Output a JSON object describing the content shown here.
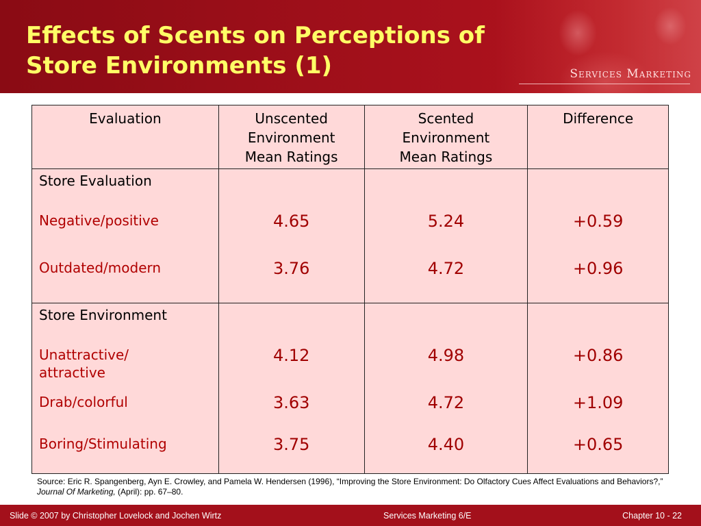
{
  "slide": {
    "title_line1": "Effects of Scents on Perceptions of",
    "title_line2": "Store Environments (1)",
    "brand": "Services Marketing"
  },
  "table": {
    "headers": {
      "evaluation": "Evaluation",
      "unscented": [
        "Unscented",
        "Environment",
        "Mean Ratings"
      ],
      "scented": [
        "Scented",
        "Environment",
        "Mean Ratings"
      ],
      "difference": "Difference"
    },
    "sections": [
      {
        "label": "Store Evaluation",
        "rows": [
          {
            "label": "Negative/positive",
            "unscented": "4.65",
            "scented": "5.24",
            "difference": "+0.59"
          },
          {
            "label": "Outdated/modern",
            "unscented": "3.76",
            "scented": "4.72",
            "difference": "+0.96"
          }
        ]
      },
      {
        "label": "Store Environment",
        "rows": [
          {
            "label": "Unattractive/\nattractive",
            "unscented": "4.12",
            "scented": "4.98",
            "difference": "+0.86"
          },
          {
            "label": "Drab/colorful",
            "unscented": "3.63",
            "scented": "4.72",
            "difference": "+1.09"
          },
          {
            "label": "Boring/Stimulating",
            "unscented": "3.75",
            "scented": "4.40",
            "difference": "+0.65"
          }
        ]
      }
    ]
  },
  "source": {
    "text": "Source: Eric R. Spangenberg, Ayn E. Crowley, and Pamela W. Hendersen (1996), “Improving the Store Environment: Do Olfactory Cues Affect Evaluations and Behaviors?,” ",
    "journal": "Journal Of Marketing,",
    "tail": " (April): pp. 67–80."
  },
  "footer": {
    "left": "Slide © 2007 by Christopher Lovelock and Jochen Wirtz",
    "middle": "Services Marketing 6/E",
    "right": "Chapter 10 - 22"
  },
  "colors": {
    "header_red": "#a3101b",
    "title_yellow": "#ffff66",
    "table_pink": "#ffd9d9",
    "value_red": "#a00000"
  }
}
